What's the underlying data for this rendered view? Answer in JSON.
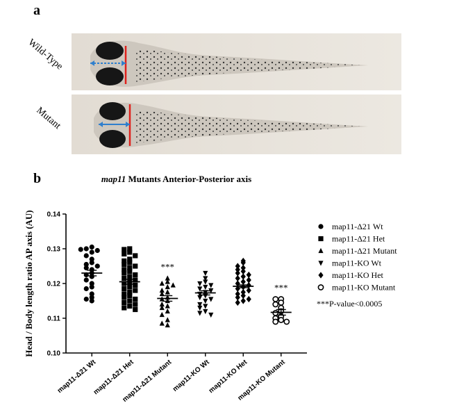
{
  "panels": {
    "a": {
      "label": "a",
      "rows": [
        {
          "label": "Wild-Type"
        },
        {
          "label": "Mutant"
        }
      ]
    },
    "b": {
      "label": "b"
    }
  },
  "chart_data": {
    "type": "scatter",
    "title_italic": "map11",
    "title_rest": " Mutants Anterior-Posterior axis",
    "ylabel": "Head / Body length ratio AP axis (AU)",
    "xlabel": "",
    "ylim": [
      0.1,
      0.14
    ],
    "yticks": [
      "0.10",
      "0.11",
      "0.12",
      "0.13",
      "0.14"
    ],
    "categories": [
      "map11-Δ21 Wt",
      "map11-Δ21 Het",
      "map11-Δ21 Mutant",
      "map11-KO Wt",
      "map11-KO Het",
      "map11-KO Mutant"
    ],
    "series": [
      {
        "name": "map11-Δ21 Wt",
        "marker": "circle",
        "mean": 0.123,
        "sem": 0.0008,
        "values": [
          0.1305,
          0.13,
          0.1295,
          0.1298,
          0.129,
          0.128,
          0.127,
          0.126,
          0.1255,
          0.125,
          0.124,
          0.1245,
          0.123,
          0.1225,
          0.122,
          0.121,
          0.12,
          0.119,
          0.1185,
          0.117,
          0.116,
          0.1155,
          0.115
        ]
      },
      {
        "name": "map11-Δ21 Het",
        "marker": "square",
        "mean": 0.1205,
        "sem": 0.0007,
        "values": [
          0.13,
          0.1298,
          0.129,
          0.1285,
          0.128,
          0.127,
          0.1265,
          0.126,
          0.1255,
          0.125,
          0.1245,
          0.124,
          0.1235,
          0.123,
          0.1225,
          0.122,
          0.1215,
          0.121,
          0.1205,
          0.12,
          0.1195,
          0.119,
          0.1185,
          0.118,
          0.1175,
          0.117,
          0.1165,
          0.116,
          0.1155,
          0.115,
          0.1145,
          0.114,
          0.1135,
          0.113,
          0.1125
        ]
      },
      {
        "name": "map11-Δ21 Mutant",
        "marker": "triangle-up",
        "mean": 0.1157,
        "sem": 0.0008,
        "annotation": "***",
        "values": [
          0.1215,
          0.1205,
          0.12,
          0.1195,
          0.119,
          0.118,
          0.1175,
          0.117,
          0.116,
          0.1155,
          0.115,
          0.114,
          0.1135,
          0.113,
          0.112,
          0.111,
          0.1095,
          0.1085,
          0.108
        ]
      },
      {
        "name": "map11-KO Wt",
        "marker": "triangle-down",
        "mean": 0.1173,
        "sem": 0.0006,
        "values": [
          0.123,
          0.1215,
          0.1205,
          0.12,
          0.1195,
          0.119,
          0.1185,
          0.118,
          0.1175,
          0.117,
          0.1165,
          0.116,
          0.1155,
          0.115,
          0.114,
          0.1135,
          0.113,
          0.112,
          0.1115,
          0.111
        ]
      },
      {
        "name": "map11-KO Het",
        "marker": "diamond",
        "mean": 0.1192,
        "sem": 0.0004,
        "values": [
          0.1265,
          0.126,
          0.125,
          0.1245,
          0.124,
          0.1235,
          0.123,
          0.1225,
          0.122,
          0.1215,
          0.121,
          0.1205,
          0.12,
          0.1195,
          0.119,
          0.1185,
          0.118,
          0.1175,
          0.117,
          0.1165,
          0.116,
          0.1155,
          0.115,
          0.1145
        ]
      },
      {
        "name": "map11-KO Mutant",
        "marker": "circle-open",
        "mean": 0.1117,
        "sem": 0.0008,
        "annotation": "***",
        "values": [
          0.1155,
          0.1155,
          0.1145,
          0.114,
          0.113,
          0.112,
          0.1115,
          0.1105,
          0.11,
          0.1095,
          0.109,
          0.109
        ]
      }
    ],
    "legend": {
      "position": "right",
      "entries": [
        "map11-Δ21 Wt",
        "map11-Δ21 Het",
        "map11-Δ21 Mutant",
        "map11-KO Wt",
        "map11-KO Het",
        "map11-KO Mutant"
      ],
      "note": "***P-value<0.0005"
    }
  }
}
